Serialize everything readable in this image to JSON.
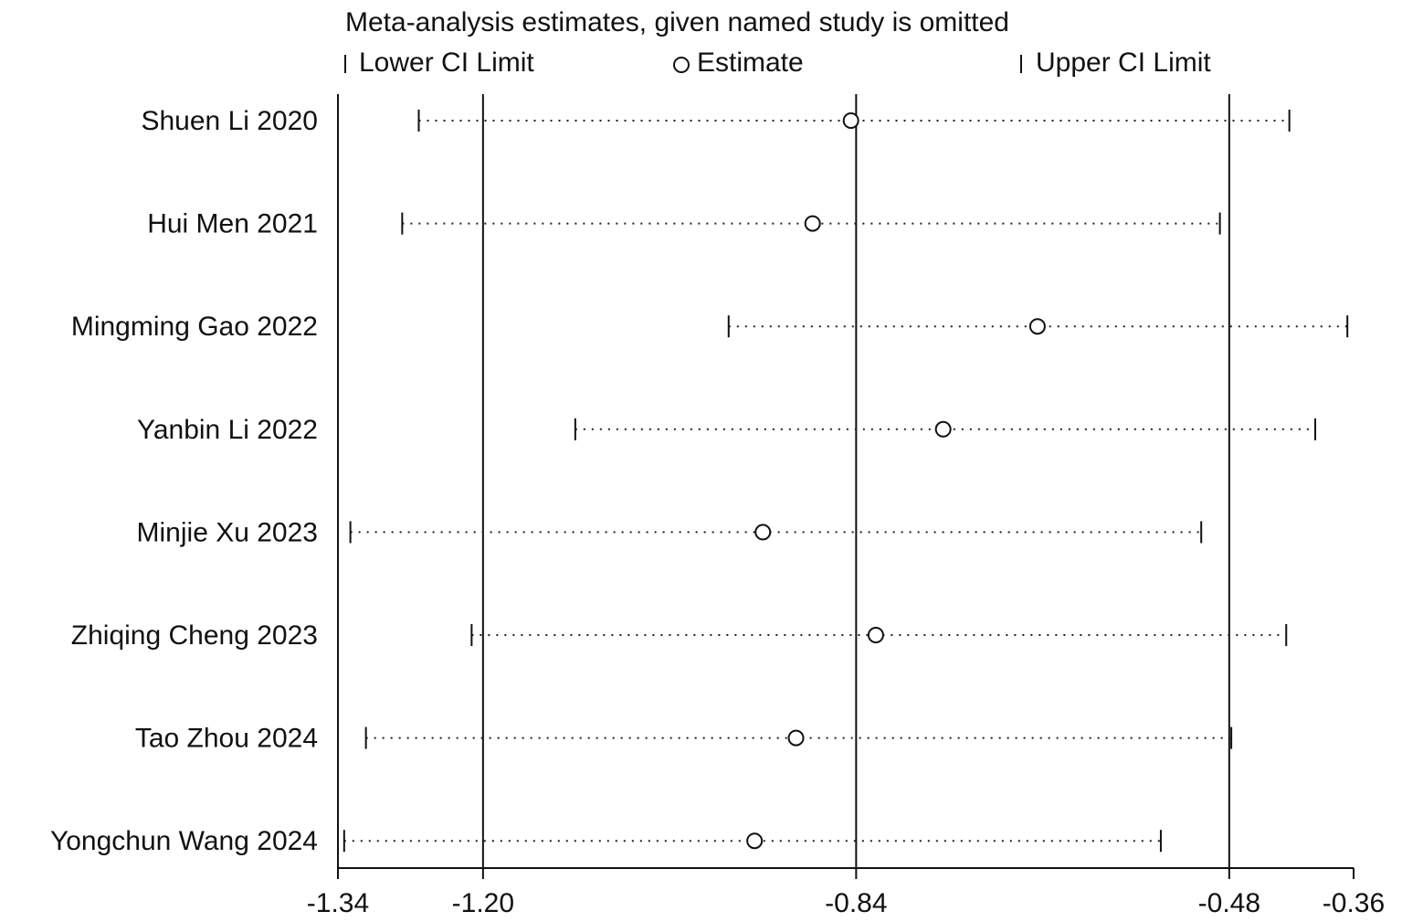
{
  "chart_data": {
    "type": "sensitivity-plot",
    "title": "Meta-analysis estimates, given named study is omitted",
    "legend": {
      "lower": "Lower CI Limit",
      "estimate": "Estimate",
      "upper": "Upper CI Limit",
      "placement": "top"
    },
    "xlim": [
      -1.34,
      -0.36
    ],
    "xticks": [
      "-1.34",
      "-1.20",
      "-0.84",
      "-0.48",
      "-0.36"
    ],
    "tick_values": [
      -1.34,
      -1.2,
      -0.84,
      -0.48,
      -0.36
    ],
    "reference_lines": [
      -1.2,
      -0.84,
      -0.48
    ],
    "studies": [
      {
        "name": "Shuen Li 2020",
        "lower": -1.262,
        "estimate": -0.845,
        "upper": -0.422
      },
      {
        "name": "Hui Men 2021",
        "lower": -1.278,
        "estimate": -0.882,
        "upper": -0.489
      },
      {
        "name": "Mingming Gao 2022",
        "lower": -0.963,
        "estimate": -0.665,
        "upper": -0.366
      },
      {
        "name": "Yanbin Li 2022",
        "lower": -1.111,
        "estimate": -0.756,
        "upper": -0.397
      },
      {
        "name": "Minjie Xu 2023",
        "lower": -1.328,
        "estimate": -0.93,
        "upper": -0.507
      },
      {
        "name": "Zhiqing Cheng 2023",
        "lower": -1.211,
        "estimate": -0.821,
        "upper": -0.425
      },
      {
        "name": "Tao Zhou 2024",
        "lower": -1.313,
        "estimate": -0.898,
        "upper": -0.478
      },
      {
        "name": "Yongchun Wang 2024",
        "lower": -1.334,
        "estimate": -0.938,
        "upper": -0.546
      }
    ]
  }
}
